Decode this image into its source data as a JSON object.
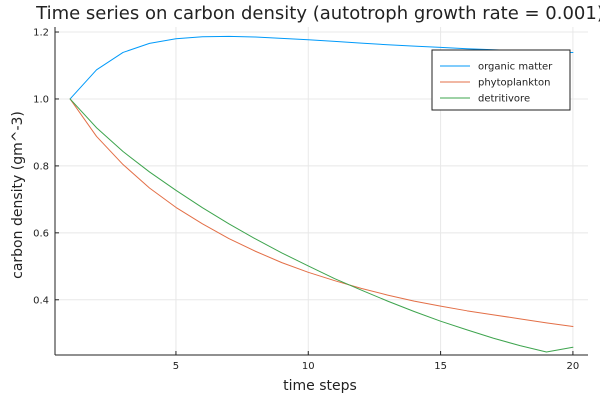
{
  "chart_data": {
    "type": "line",
    "title": "Time series on carbon density (autotroph growth rate = 0.001)",
    "xlabel": "time steps",
    "ylabel": "carbon density (gm^-3)",
    "xlim": [
      0.43,
      20.57
    ],
    "ylim": [
      0.235,
      1.215
    ],
    "xticks": [
      5,
      10,
      15,
      20
    ],
    "yticks": [
      0.4,
      0.6,
      0.8,
      1.0,
      1.2
    ],
    "ytick_labels": [
      "0.4",
      "0.6",
      "0.8",
      "1.0",
      "1.2"
    ],
    "grid": true,
    "legend_position": "top-right",
    "x": [
      1,
      2,
      3,
      4,
      5,
      6,
      7,
      8,
      9,
      10,
      11,
      12,
      13,
      14,
      15,
      16,
      17,
      18,
      19,
      20
    ],
    "series": [
      {
        "name": "organic matter",
        "color": "#009AFA",
        "values": [
          1.0,
          1.087,
          1.139,
          1.166,
          1.18,
          1.186,
          1.187,
          1.185,
          1.181,
          1.177,
          1.172,
          1.167,
          1.162,
          1.158,
          1.154,
          1.15,
          1.147,
          1.144,
          1.141,
          1.139
        ]
      },
      {
        "name": "phytoplankton",
        "color": "#E36F47",
        "values": [
          1.0,
          0.888,
          0.804,
          0.734,
          0.676,
          0.627,
          0.583,
          0.545,
          0.511,
          0.482,
          0.457,
          0.434,
          0.414,
          0.396,
          0.381,
          0.367,
          0.355,
          0.343,
          0.331,
          0.32
        ]
      },
      {
        "name": "detritivore",
        "color": "#3EA44E",
        "values": [
          1.0,
          0.914,
          0.843,
          0.782,
          0.727,
          0.675,
          0.627,
          0.582,
          0.54,
          0.501,
          0.463,
          0.429,
          0.396,
          0.365,
          0.336,
          0.31,
          0.285,
          0.263,
          0.244,
          0.258
        ]
      }
    ]
  }
}
